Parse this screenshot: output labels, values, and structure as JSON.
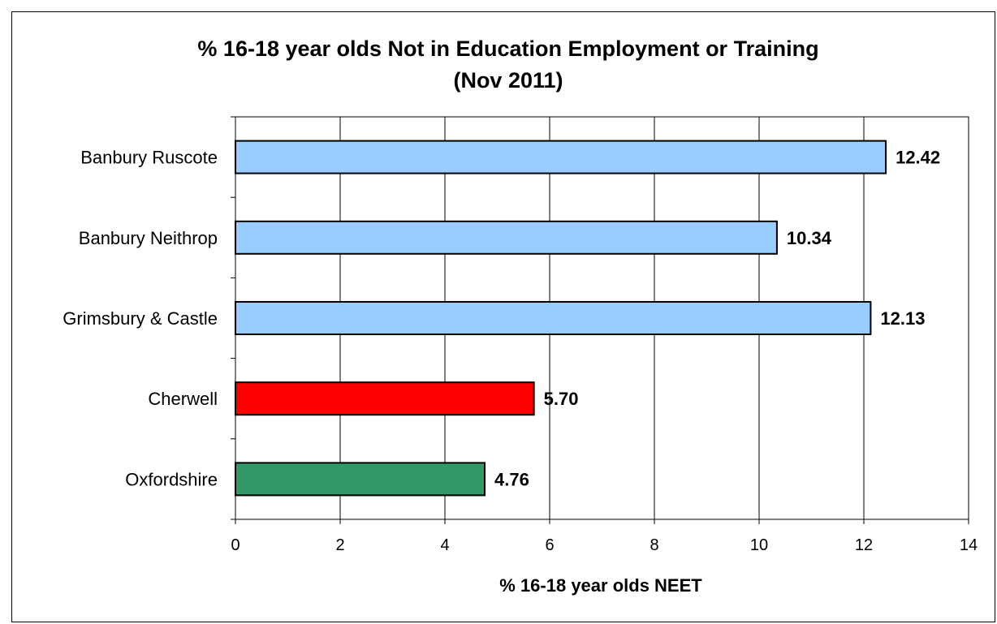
{
  "chart_data": {
    "type": "bar",
    "orientation": "horizontal",
    "title": "% 16-18 year olds Not in Education Employment or Training",
    "subtitle": "(Nov 2011)",
    "xlabel": "% 16-18 year olds NEET",
    "ylabel": "",
    "xlim": [
      0,
      14
    ],
    "x_ticks": [
      0,
      2,
      4,
      6,
      8,
      10,
      12,
      14
    ],
    "grid": true,
    "legend": "none",
    "categories": [
      "Banbury Ruscote",
      "Banbury Neithrop",
      "Grimsbury & Castle",
      "Cherwell",
      "Oxfordshire"
    ],
    "values": [
      12.42,
      10.34,
      12.13,
      5.7,
      4.76
    ],
    "value_labels": [
      "12.42",
      "10.34",
      "12.13",
      "5.70",
      "4.76"
    ],
    "bar_colors": [
      "#99ccff",
      "#99ccff",
      "#99ccff",
      "#ff0000",
      "#339966"
    ],
    "bar_border_color": "#000000",
    "grid_color": "#000000",
    "frame_color": "#000000"
  }
}
